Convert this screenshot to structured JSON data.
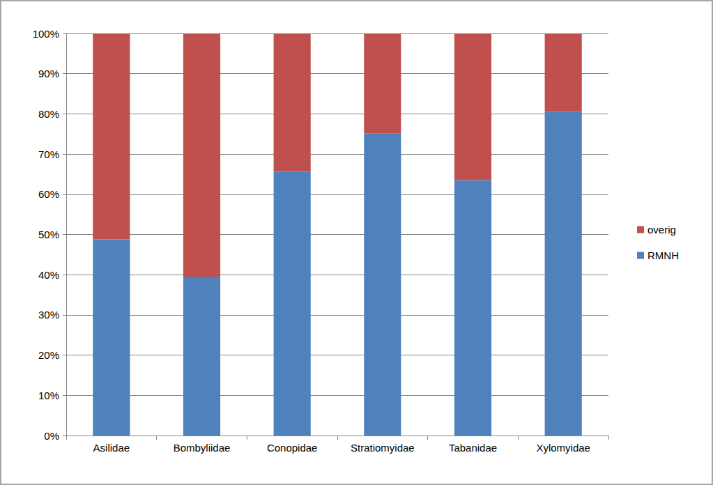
{
  "chart_data": {
    "type": "bar",
    "stacked": true,
    "categories": [
      "Asilidae",
      "Bombyliidae",
      "Conopidae",
      "Stratiomyidae",
      "Tabanidae",
      "Xylomyidae"
    ],
    "series": [
      {
        "name": "RMNH",
        "color": "#4f81bd",
        "values": [
          48.8,
          39.5,
          65.6,
          75.1,
          63.5,
          80.5
        ]
      },
      {
        "name": "overig",
        "color": "#c0504d",
        "values": [
          51.2,
          60.5,
          34.4,
          24.9,
          36.5,
          19.5
        ]
      }
    ],
    "ylim": [
      0,
      100
    ],
    "yticks": [
      {
        "value": 0,
        "label": "0%"
      },
      {
        "value": 10,
        "label": "10%"
      },
      {
        "value": 20,
        "label": "20%"
      },
      {
        "value": 30,
        "label": "30%"
      },
      {
        "value": 40,
        "label": "40%"
      },
      {
        "value": 50,
        "label": "50%"
      },
      {
        "value": 60,
        "label": "60%"
      },
      {
        "value": 70,
        "label": "70%"
      },
      {
        "value": 80,
        "label": "80%"
      },
      {
        "value": 90,
        "label": "90%"
      },
      {
        "value": 100,
        "label": "100%"
      }
    ],
    "grid": true,
    "legend": "right"
  }
}
